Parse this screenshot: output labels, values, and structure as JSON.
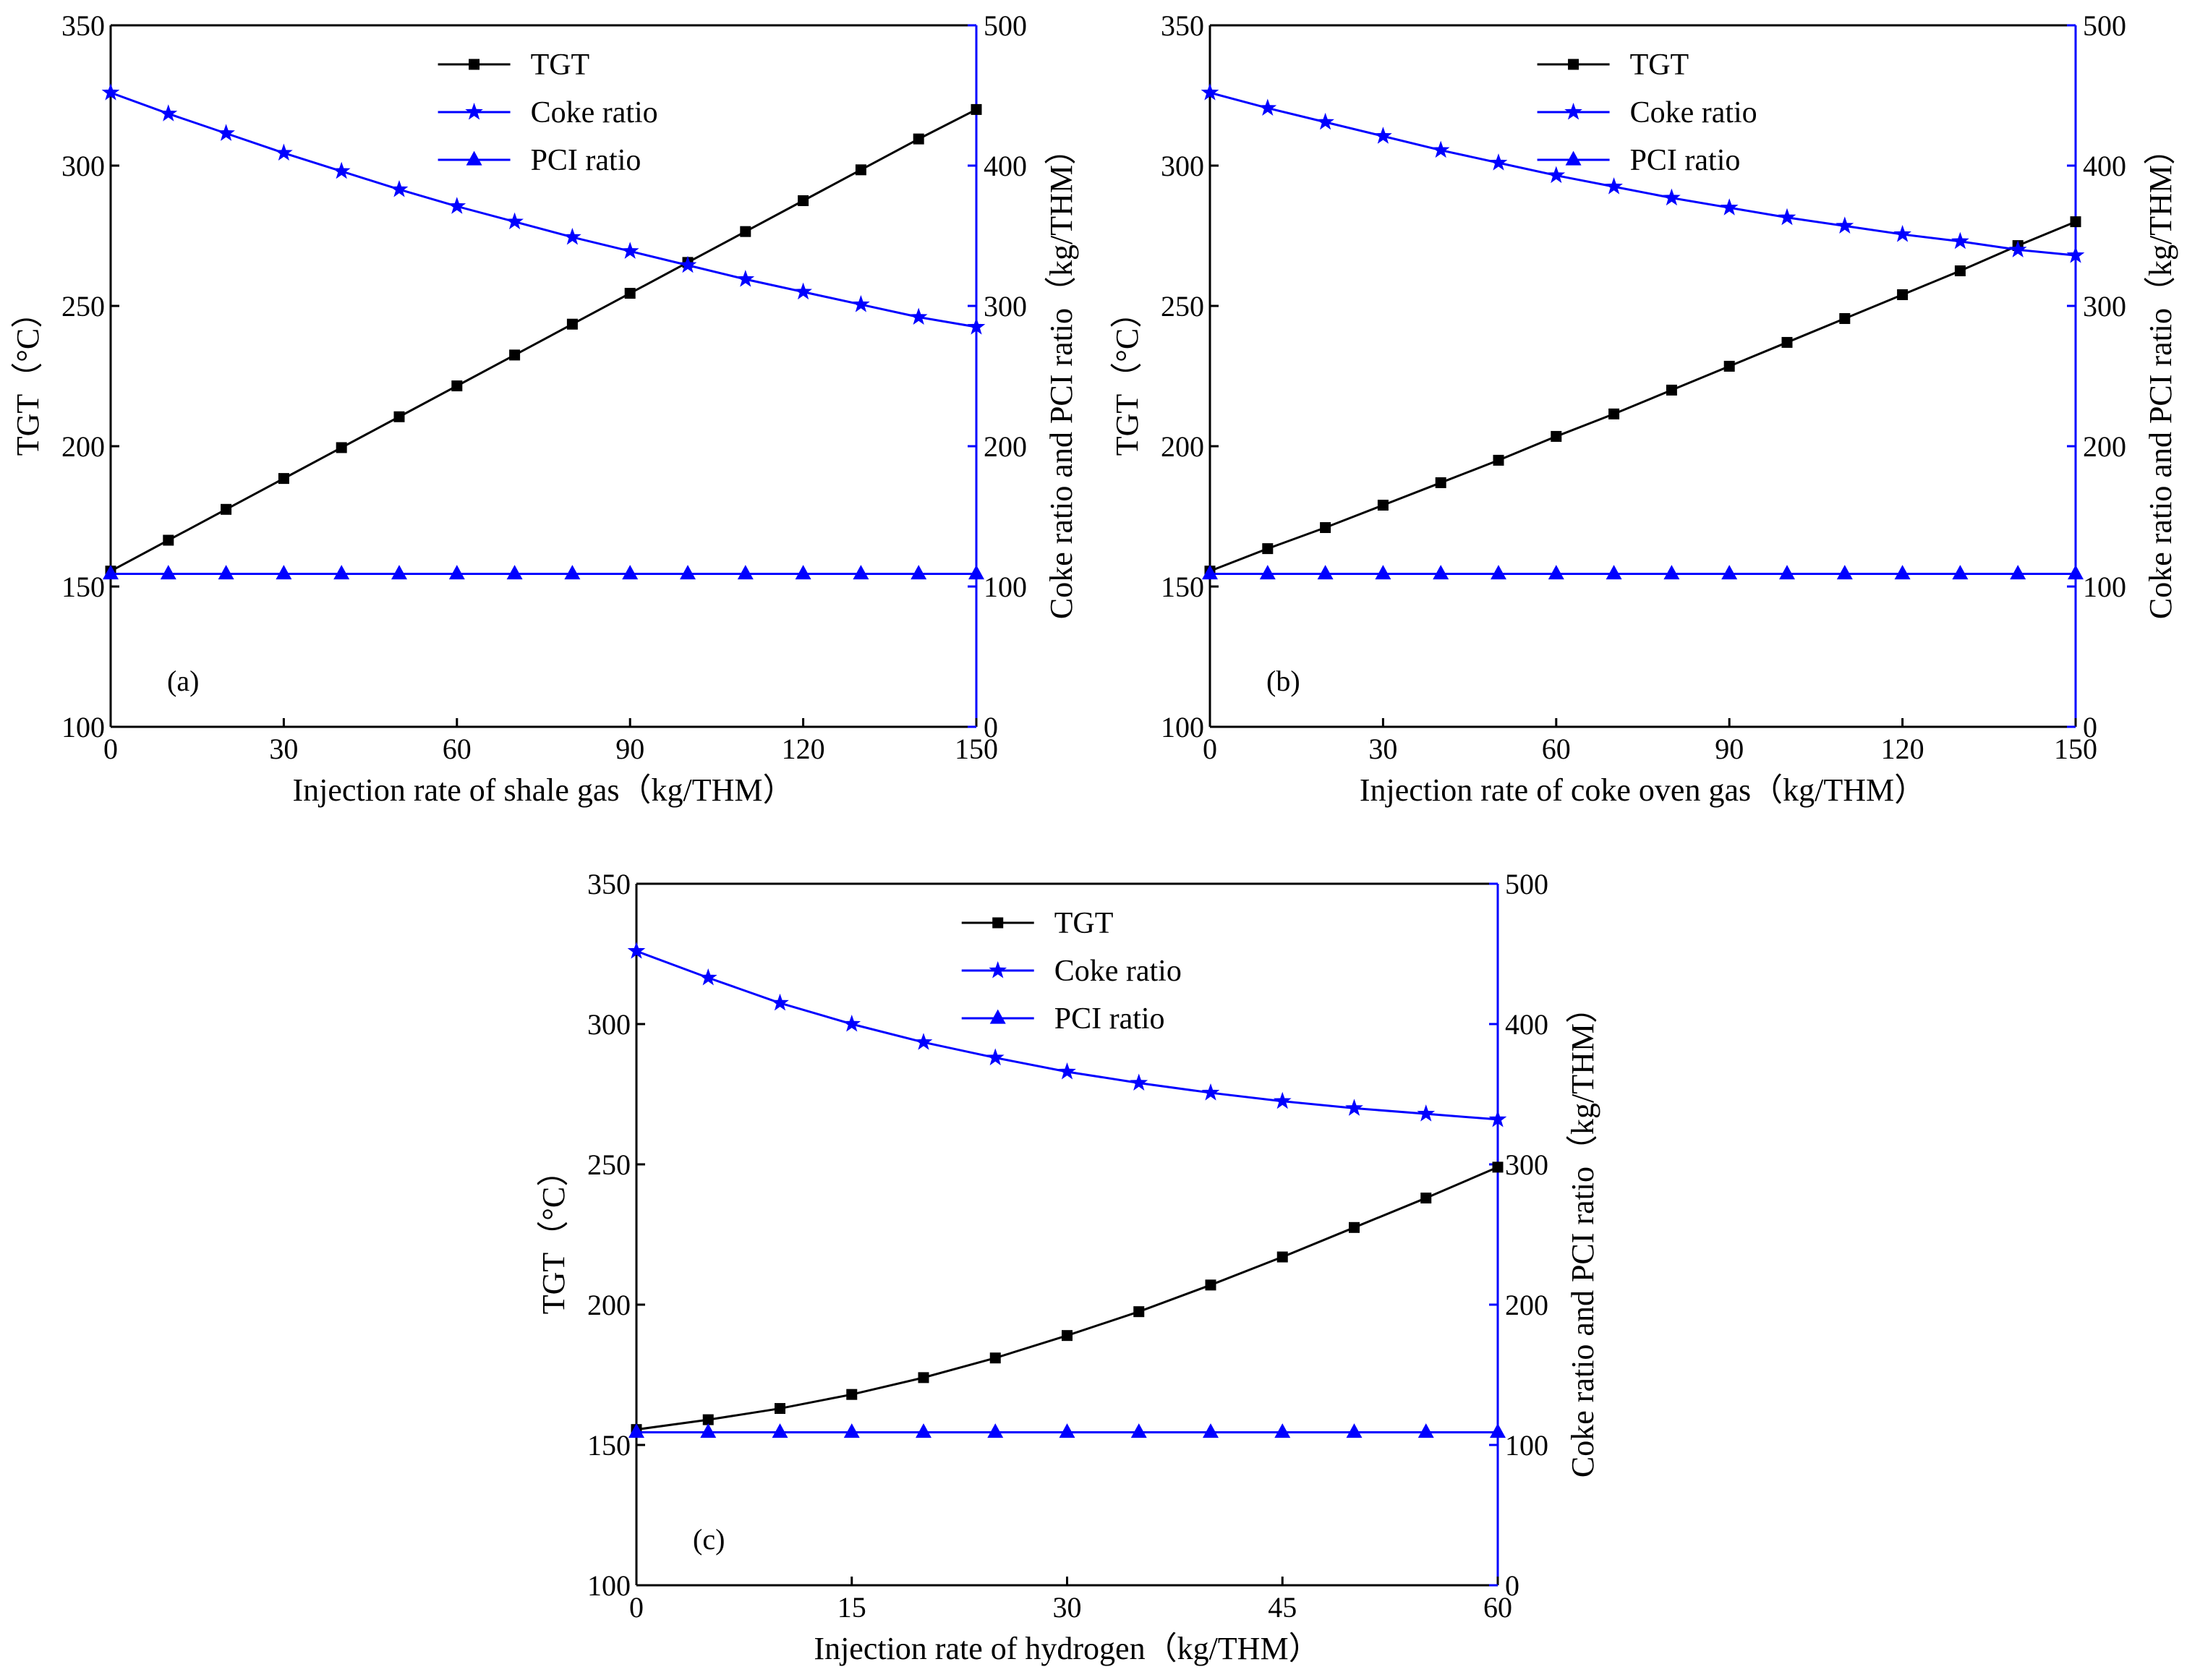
{
  "chart_data": [
    {
      "type": "line",
      "panel_label": "(a)",
      "xlabel": "Injection rate of shale gas（kg/THM）",
      "ylabel_left": "TGT（°C）",
      "ylabel_right": "Coke ratio and PCI ratio（kg/THM）",
      "xlim": [
        0,
        150
      ],
      "ylim_left": [
        100,
        350
      ],
      "ylim_right": [
        0,
        500
      ],
      "xticks": [
        0,
        30,
        60,
        90,
        120,
        150
      ],
      "yticks_left": [
        100,
        150,
        200,
        250,
        300,
        350
      ],
      "yticks_right": [
        0,
        100,
        200,
        300,
        400,
        500
      ],
      "x": [
        0,
        10,
        20,
        30,
        40,
        50,
        60,
        70,
        80,
        90,
        100,
        110,
        120,
        130,
        140,
        150
      ],
      "legend_position": "top-center",
      "series": [
        {
          "name": "TGT",
          "axis": "left",
          "color": "#000000",
          "marker": "square",
          "values": [
            155.5,
            166.5,
            177.5,
            188.5,
            199.5,
            210.5,
            221.5,
            232.5,
            243.5,
            254.5,
            265.5,
            276.5,
            287.5,
            298.5,
            309.5,
            320.0
          ]
        },
        {
          "name": "Coke ratio",
          "axis": "right",
          "color": "#0000ff",
          "marker": "star",
          "values": [
            452,
            437,
            423,
            409,
            396,
            383,
            371,
            360,
            349,
            339,
            329,
            319,
            310,
            301,
            292,
            285
          ]
        },
        {
          "name": "PCI ratio",
          "axis": "right",
          "color": "#0000ff",
          "marker": "triangle",
          "values": [
            109,
            109,
            109,
            109,
            109,
            109,
            109,
            109,
            109,
            109,
            109,
            109,
            109,
            109,
            109,
            109
          ]
        }
      ]
    },
    {
      "type": "line",
      "panel_label": "(b)",
      "xlabel": "Injection rate of coke oven gas（kg/THM）",
      "ylabel_left": "TGT（°C）",
      "ylabel_right": "Coke ratio and PCI ratio（kg/THM）",
      "xlim": [
        0,
        150
      ],
      "ylim_left": [
        100,
        350
      ],
      "ylim_right": [
        0,
        500
      ],
      "xticks": [
        0,
        30,
        60,
        90,
        120,
        150
      ],
      "yticks_left": [
        100,
        150,
        200,
        250,
        300,
        350
      ],
      "yticks_right": [
        0,
        100,
        200,
        300,
        400,
        500
      ],
      "x": [
        0,
        10,
        20,
        30,
        40,
        50,
        60,
        70,
        80,
        90,
        100,
        110,
        120,
        130,
        140,
        150
      ],
      "legend_position": "top-center",
      "series": [
        {
          "name": "TGT",
          "axis": "left",
          "color": "#000000",
          "marker": "square",
          "values": [
            155.5,
            163.5,
            171.0,
            179.0,
            187.0,
            195.0,
            203.5,
            211.5,
            220.0,
            228.5,
            237.0,
            245.5,
            254.0,
            262.5,
            271.5,
            280.0
          ]
        },
        {
          "name": "Coke ratio",
          "axis": "right",
          "color": "#0000ff",
          "marker": "star",
          "values": [
            452,
            441,
            431,
            421,
            411,
            402,
            393,
            385,
            377,
            370,
            363,
            357,
            351,
            346,
            340,
            336
          ]
        },
        {
          "name": "PCI ratio",
          "axis": "right",
          "color": "#0000ff",
          "marker": "triangle",
          "values": [
            109,
            109,
            109,
            109,
            109,
            109,
            109,
            109,
            109,
            109,
            109,
            109,
            109,
            109,
            109,
            109
          ]
        }
      ]
    },
    {
      "type": "line",
      "panel_label": "(c)",
      "xlabel": "Injection rate of hydrogen（kg/THM）",
      "ylabel_left": "TGT（°C）",
      "ylabel_right": "Coke ratio and PCI ratio（kg/THM）",
      "xlim": [
        0,
        60
      ],
      "ylim_left": [
        100,
        350
      ],
      "ylim_right": [
        0,
        500
      ],
      "xticks": [
        0,
        15,
        30,
        45,
        60
      ],
      "yticks_left": [
        100,
        150,
        200,
        250,
        300,
        350
      ],
      "yticks_right": [
        0,
        100,
        200,
        300,
        400,
        500
      ],
      "x": [
        0,
        5,
        10,
        15,
        20,
        25,
        30,
        35,
        40,
        45,
        50,
        55,
        60
      ],
      "legend_position": "top-center",
      "series": [
        {
          "name": "TGT",
          "axis": "left",
          "color": "#000000",
          "marker": "square",
          "values": [
            155.5,
            159.0,
            163.0,
            168.0,
            174.0,
            181.0,
            189.0,
            197.5,
            207.0,
            217.0,
            227.5,
            238.0,
            249.0
          ]
        },
        {
          "name": "Coke ratio",
          "axis": "right",
          "color": "#0000ff",
          "marker": "star",
          "values": [
            452,
            433,
            415,
            400,
            387,
            376,
            366,
            358,
            351,
            345,
            340,
            336,
            332
          ]
        },
        {
          "name": "PCI ratio",
          "axis": "right",
          "color": "#0000ff",
          "marker": "triangle",
          "values": [
            109,
            109,
            109,
            109,
            109,
            109,
            109,
            109,
            109,
            109,
            109,
            109,
            109
          ]
        }
      ]
    }
  ]
}
